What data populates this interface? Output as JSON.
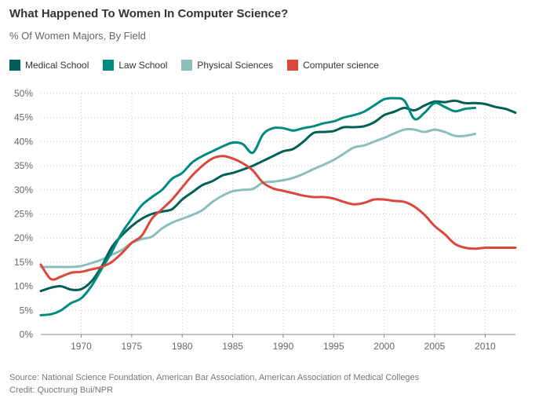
{
  "header": {
    "title": "What Happened To Women In Computer Science?",
    "subtitle": "% Of Women Majors, By Field"
  },
  "footer": {
    "source": "Source: National Science Foundation, American Bar Association, American Association of Medical Colleges",
    "credit": "Credit: Quoctrung Bui/NPR"
  },
  "chart_data": {
    "type": "line",
    "title": "What Happened To Women In Computer Science?",
    "subtitle": "% Of Women Majors, By Field",
    "xlabel": "",
    "ylabel": "",
    "xlim": [
      1966,
      2013
    ],
    "ylim": [
      0,
      50
    ],
    "x_ticks": [
      1970,
      1975,
      1980,
      1985,
      1990,
      1995,
      2000,
      2005,
      2010
    ],
    "y_ticks": [
      0,
      5,
      10,
      15,
      20,
      25,
      30,
      35,
      40,
      45,
      50
    ],
    "y_tick_labels": [
      "0%",
      "5%",
      "10%",
      "15%",
      "20%",
      "25%",
      "30%",
      "35%",
      "40%",
      "45%",
      "50%"
    ],
    "grid": "dotted",
    "legend_position": "top-left",
    "series": [
      {
        "name": "Medical School",
        "color": "#005f56",
        "points": [
          [
            1966,
            9
          ],
          [
            1967,
            9.7
          ],
          [
            1968,
            10
          ],
          [
            1969,
            9.3
          ],
          [
            1970,
            9.4
          ],
          [
            1971,
            11
          ],
          [
            1972,
            14
          ],
          [
            1973,
            18
          ],
          [
            1974,
            20.5
          ],
          [
            1975,
            22.5
          ],
          [
            1976,
            24
          ],
          [
            1977,
            25
          ],
          [
            1978,
            25.5
          ],
          [
            1979,
            26
          ],
          [
            1980,
            28
          ],
          [
            1981,
            29.5
          ],
          [
            1982,
            31
          ],
          [
            1983,
            31.8
          ],
          [
            1984,
            33
          ],
          [
            1985,
            33.5
          ],
          [
            1986,
            34.2
          ],
          [
            1987,
            35
          ],
          [
            1988,
            36
          ],
          [
            1989,
            37
          ],
          [
            1990,
            38
          ],
          [
            1991,
            38.5
          ],
          [
            1992,
            40
          ],
          [
            1993,
            41.8
          ],
          [
            1994,
            42
          ],
          [
            1995,
            42.2
          ],
          [
            1996,
            43
          ],
          [
            1997,
            43
          ],
          [
            1998,
            43.2
          ],
          [
            1999,
            44
          ],
          [
            2000,
            45.5
          ],
          [
            2001,
            46.2
          ],
          [
            2002,
            47
          ],
          [
            2003,
            46.5
          ],
          [
            2004,
            47.5
          ],
          [
            2005,
            48.3
          ],
          [
            2006,
            48.2
          ],
          [
            2007,
            48.5
          ],
          [
            2008,
            48
          ],
          [
            2009,
            48
          ],
          [
            2010,
            47.8
          ],
          [
            2011,
            47.2
          ],
          [
            2012,
            46.8
          ],
          [
            2013,
            46
          ]
        ]
      },
      {
        "name": "Law School",
        "color": "#018a80",
        "points": [
          [
            1966,
            4
          ],
          [
            1967,
            4.2
          ],
          [
            1968,
            5
          ],
          [
            1969,
            6.5
          ],
          [
            1970,
            7.5
          ],
          [
            1971,
            10
          ],
          [
            1972,
            13.5
          ],
          [
            1973,
            17
          ],
          [
            1974,
            21
          ],
          [
            1975,
            24
          ],
          [
            1976,
            26.8
          ],
          [
            1977,
            28.5
          ],
          [
            1978,
            30
          ],
          [
            1979,
            32.3
          ],
          [
            1980,
            33.5
          ],
          [
            1981,
            35.7
          ],
          [
            1982,
            37
          ],
          [
            1983,
            38
          ],
          [
            1984,
            39
          ],
          [
            1985,
            39.8
          ],
          [
            1986,
            39.5
          ],
          [
            1987,
            37.7
          ],
          [
            1988,
            41.5
          ],
          [
            1989,
            42.8
          ],
          [
            1990,
            42.8
          ],
          [
            1991,
            42.3
          ],
          [
            1992,
            42.8
          ],
          [
            1993,
            43.2
          ],
          [
            1994,
            43.8
          ],
          [
            1995,
            44.2
          ],
          [
            1996,
            45
          ],
          [
            1997,
            45.5
          ],
          [
            1998,
            46.2
          ],
          [
            1999,
            47.5
          ],
          [
            2000,
            48.8
          ],
          [
            2001,
            49
          ],
          [
            2002,
            48.5
          ],
          [
            2003,
            44.7
          ],
          [
            2004,
            46
          ],
          [
            2005,
            48
          ],
          [
            2006,
            47.2
          ],
          [
            2007,
            46.3
          ],
          [
            2008,
            46.8
          ],
          [
            2009,
            47
          ]
        ]
      },
      {
        "name": "Physical Sciences",
        "color": "#8bbfbd",
        "points": [
          [
            1966,
            14
          ],
          [
            1967,
            14
          ],
          [
            1968,
            14
          ],
          [
            1969,
            14
          ],
          [
            1970,
            14.2
          ],
          [
            1971,
            14.8
          ],
          [
            1972,
            15.5
          ],
          [
            1973,
            16.5
          ],
          [
            1974,
            17.5
          ],
          [
            1975,
            19
          ],
          [
            1976,
            19.8
          ],
          [
            1977,
            20.3
          ],
          [
            1978,
            22
          ],
          [
            1979,
            23.2
          ],
          [
            1980,
            24
          ],
          [
            1981,
            24.8
          ],
          [
            1982,
            25.8
          ],
          [
            1983,
            27.5
          ],
          [
            1984,
            28.8
          ],
          [
            1985,
            29.7
          ],
          [
            1986,
            30
          ],
          [
            1987,
            30.2
          ],
          [
            1988,
            31.5
          ],
          [
            1989,
            31.7
          ],
          [
            1990,
            32
          ],
          [
            1991,
            32.5
          ],
          [
            1992,
            33.3
          ],
          [
            1993,
            34.3
          ],
          [
            1994,
            35.2
          ],
          [
            1995,
            36.2
          ],
          [
            1996,
            37.5
          ],
          [
            1997,
            38.8
          ],
          [
            1998,
            39.2
          ],
          [
            1999,
            40
          ],
          [
            2000,
            40.8
          ],
          [
            2001,
            41.7
          ],
          [
            2002,
            42.5
          ],
          [
            2003,
            42.5
          ],
          [
            2004,
            42
          ],
          [
            2005,
            42.5
          ],
          [
            2006,
            42
          ],
          [
            2007,
            41.2
          ],
          [
            2008,
            41.2
          ],
          [
            2009,
            41.6
          ]
        ]
      },
      {
        "name": "Computer science",
        "color": "#d9483a",
        "points": [
          [
            1966,
            14.5
          ],
          [
            1967,
            11.5
          ],
          [
            1968,
            12
          ],
          [
            1969,
            12.8
          ],
          [
            1970,
            13
          ],
          [
            1971,
            13.5
          ],
          [
            1972,
            14
          ],
          [
            1973,
            15
          ],
          [
            1974,
            16.8
          ],
          [
            1975,
            19
          ],
          [
            1976,
            20.5
          ],
          [
            1977,
            24
          ],
          [
            1978,
            26
          ],
          [
            1979,
            28
          ],
          [
            1980,
            30.5
          ],
          [
            1981,
            33
          ],
          [
            1982,
            35
          ],
          [
            1983,
            36.5
          ],
          [
            1984,
            37
          ],
          [
            1985,
            36.5
          ],
          [
            1986,
            35.5
          ],
          [
            1987,
            34
          ],
          [
            1988,
            31.5
          ],
          [
            1989,
            30.3
          ],
          [
            1990,
            29.8
          ],
          [
            1991,
            29.3
          ],
          [
            1992,
            28.8
          ],
          [
            1993,
            28.5
          ],
          [
            1994,
            28.5
          ],
          [
            1995,
            28.2
          ],
          [
            1996,
            27.5
          ],
          [
            1997,
            27
          ],
          [
            1998,
            27.3
          ],
          [
            1999,
            28
          ],
          [
            2000,
            28
          ],
          [
            2001,
            27.7
          ],
          [
            2002,
            27.5
          ],
          [
            2003,
            26.5
          ],
          [
            2004,
            24.8
          ],
          [
            2005,
            22.5
          ],
          [
            2006,
            20.8
          ],
          [
            2007,
            18.8
          ],
          [
            2008,
            18
          ],
          [
            2009,
            17.8
          ],
          [
            2010,
            18
          ],
          [
            2011,
            18
          ],
          [
            2012,
            18
          ],
          [
            2013,
            18
          ]
        ]
      }
    ]
  }
}
